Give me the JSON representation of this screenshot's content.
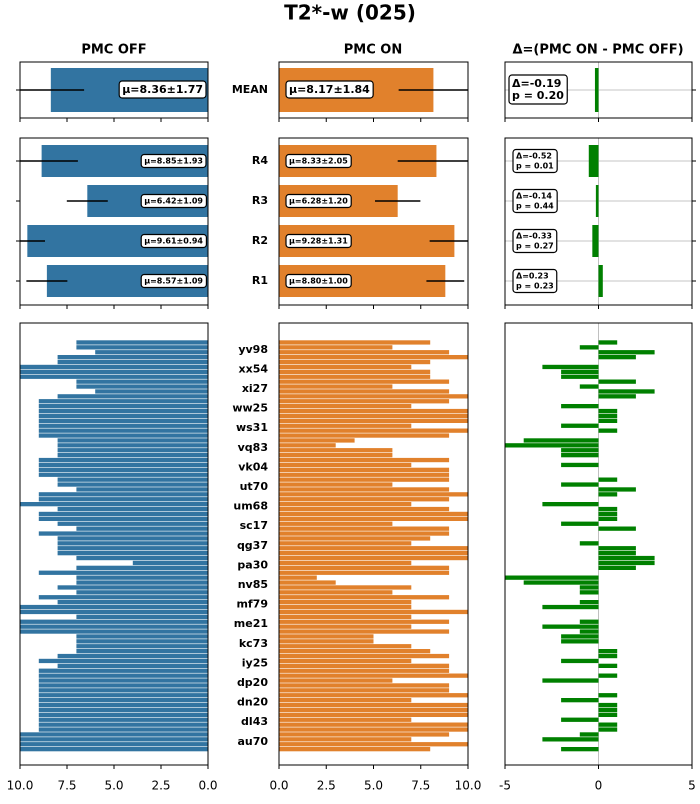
{
  "chart_data": {
    "type": "bar",
    "title": "T2*-w (025)",
    "mean_categories": [
      "MEAN"
    ],
    "run_categories": [
      "R4",
      "R3",
      "R2",
      "R1"
    ],
    "subject_categories": [
      "yv98",
      "xx54",
      "xi27",
      "ww25",
      "ws31",
      "vq83",
      "vk04",
      "ut70",
      "um68",
      "sc17",
      "qg37",
      "pa30",
      "nv85",
      "mf79",
      "me21",
      "kc73",
      "iy25",
      "dp20",
      "dn20",
      "dl43",
      "au70"
    ],
    "off": {
      "title": "PMC OFF",
      "color": "#3274a1",
      "xlim": [
        10,
        0
      ],
      "xticks": [
        {
          "value": 10,
          "label": "10.0"
        },
        {
          "value": 7.5,
          "label": "7.5"
        },
        {
          "value": 5,
          "label": "5.0"
        },
        {
          "value": 2.5,
          "label": "2.5"
        },
        {
          "value": 0,
          "label": "0.0"
        }
      ],
      "mean": {
        "values": [
          8.36
        ],
        "errors": [
          1.77
        ],
        "value_labels": [
          "μ=8.36±1.77"
        ]
      },
      "runs": {
        "values": [
          8.85,
          6.42,
          9.61,
          8.57
        ],
        "errors": [
          1.93,
          1.09,
          0.94,
          1.09
        ],
        "value_labels": [
          "μ=8.85±1.93",
          "μ=6.42±1.09",
          "μ=9.61±0.94",
          "μ=8.57±1.09"
        ]
      },
      "subjects": {
        "values": [
          7,
          7,
          6,
          8,
          8,
          10,
          10,
          10,
          7,
          7,
          6,
          8,
          9,
          9,
          9,
          9,
          9,
          9,
          9,
          9,
          8,
          8,
          8,
          8,
          9,
          9,
          9,
          9,
          8,
          8,
          7,
          9,
          9,
          10,
          8,
          9,
          9,
          8,
          7,
          9,
          8,
          8,
          8,
          8,
          7,
          4,
          7,
          9,
          7,
          7,
          8,
          7,
          9,
          8,
          10,
          10,
          7,
          10,
          10,
          10,
          7,
          7,
          7,
          7,
          8,
          9,
          8,
          9,
          9,
          9,
          9,
          9,
          9,
          9,
          9,
          9,
          9,
          9,
          9,
          9,
          10,
          10,
          10,
          10
        ]
      }
    },
    "on": {
      "title": "PMC ON",
      "color": "#e1812c",
      "xlim": [
        0,
        10
      ],
      "xticks": [
        {
          "value": 0,
          "label": "0.0"
        },
        {
          "value": 2.5,
          "label": "2.5"
        },
        {
          "value": 5,
          "label": "5.0"
        },
        {
          "value": 7.5,
          "label": "7.5"
        },
        {
          "value": 10,
          "label": "10.0"
        }
      ],
      "mean": {
        "values": [
          8.17
        ],
        "errors": [
          1.84
        ],
        "value_labels": [
          "μ=8.17±1.84"
        ]
      },
      "runs": {
        "values": [
          8.33,
          6.28,
          9.28,
          8.8
        ],
        "errors": [
          2.05,
          1.2,
          1.31,
          1.0
        ],
        "value_labels": [
          "μ=8.33±2.05",
          "μ=6.28±1.20",
          "μ=9.28±1.31",
          "μ=8.80±1.00"
        ]
      },
      "subjects": {
        "values": [
          8,
          6,
          9,
          10,
          8,
          7,
          8,
          8,
          9,
          6,
          9,
          10,
          9,
          7,
          10,
          10,
          10,
          7,
          10,
          9,
          4,
          3,
          6,
          6,
          9,
          7,
          9,
          9,
          9,
          6,
          9,
          10,
          9,
          7,
          9,
          10,
          10,
          6,
          9,
          9,
          8,
          7,
          10,
          10,
          10,
          7,
          9,
          9,
          2,
          3,
          7,
          6,
          9,
          7,
          7,
          10,
          7,
          9,
          7,
          9,
          5,
          5,
          7,
          8,
          9,
          7,
          9,
          9,
          10,
          6,
          9,
          9,
          10,
          7,
          10,
          10,
          10,
          7,
          10,
          10,
          9,
          7,
          10,
          8
        ]
      }
    },
    "delta": {
      "title": "Δ=(PMC ON - PMC OFF)",
      "color": "#008000",
      "xlim": [
        -5,
        5
      ],
      "xticks": [
        -5,
        0,
        5
      ],
      "grid": true,
      "mean": {
        "values": [
          -0.19
        ],
        "value_labels": [
          "Δ=-0.19"
        ],
        "p_labels": [
          "p = 0.20"
        ]
      },
      "runs": {
        "values": [
          -0.52,
          -0.14,
          -0.33,
          0.23
        ],
        "value_labels": [
          "Δ=-0.52",
          "Δ=-0.14",
          "Δ=-0.33",
          "Δ=0.23"
        ],
        "p_labels": [
          "p = 0.01",
          "p = 0.44",
          "p = 0.27",
          "p = 0.23"
        ]
      },
      "subjects": {
        "values": [
          1,
          -1,
          3,
          2,
          0,
          -3,
          -2,
          -2,
          2,
          -1,
          3,
          2,
          0,
          -2,
          1,
          1,
          1,
          -2,
          1,
          0,
          -4,
          -5,
          -2,
          -2,
          0,
          -2,
          0,
          0,
          1,
          -2,
          2,
          1,
          0,
          -3,
          1,
          1,
          1,
          -2,
          2,
          0,
          0,
          -1,
          2,
          2,
          3,
          3,
          2,
          0,
          -5,
          -4,
          -1,
          -1,
          0,
          -1,
          -3,
          0,
          0,
          -1,
          -3,
          -1,
          -2,
          -2,
          0,
          1,
          1,
          -2,
          1,
          0,
          1,
          -3,
          0,
          0,
          1,
          -2,
          1,
          1,
          1,
          -2,
          1,
          1,
          -1,
          -3,
          0,
          -2
        ]
      }
    }
  }
}
